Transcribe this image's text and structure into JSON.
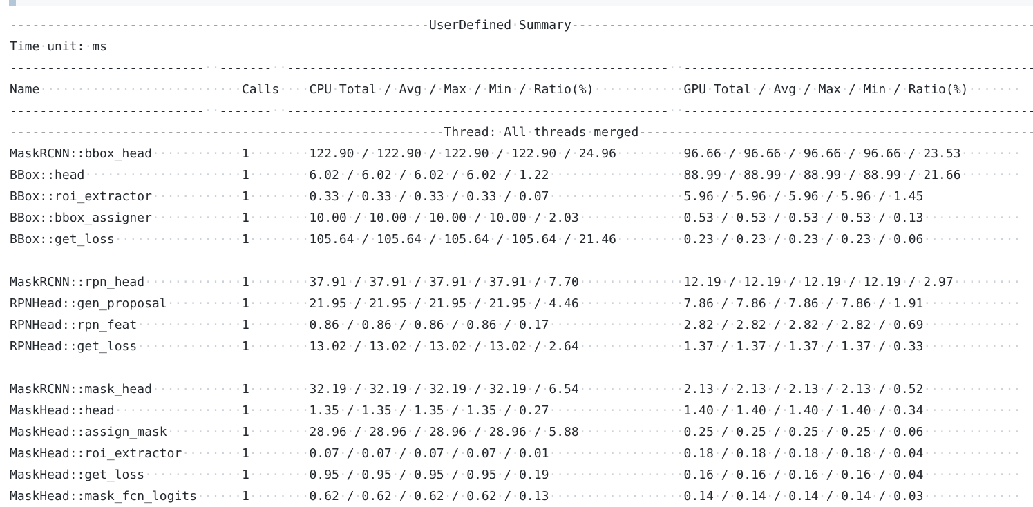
{
  "colors": {
    "text": "#24292f",
    "whitespace_dots": "#ccd2da",
    "line_highlight": "#f6f8fa",
    "cursor_block": "#b4c7d9",
    "background": "#ffffff"
  },
  "summary": {
    "title": "UserDefined Summary",
    "time_unit_label": "Time unit: ms",
    "thread_header": "Thread: All threads merged",
    "columns": {
      "name": "Name",
      "calls": "Calls",
      "cpu": "CPU Total / Avg / Max / Min / Ratio(%)",
      "gpu": "GPU Total / Avg / Max / Min / Ratio(%)"
    },
    "groups": [
      {
        "rows": [
          {
            "name": "MaskRCNN::bbox_head",
            "calls": "1",
            "cpu": "122.90 / 122.90 / 122.90 / 122.90 / 24.96",
            "gpu": "96.66 / 96.66 / 96.66 / 96.66 / 23.53",
            "trailing_whitespace": true
          },
          {
            "name": "BBox::head",
            "calls": "1",
            "cpu": "6.02 / 6.02 / 6.02 / 6.02 / 1.22",
            "gpu": "88.99 / 88.99 / 88.99 / 88.99 / 21.66",
            "trailing_whitespace": true
          },
          {
            "name": "BBox::roi_extractor",
            "calls": "1",
            "cpu": "0.33 / 0.33 / 0.33 / 0.33 / 0.07",
            "gpu": "5.96 / 5.96 / 5.96 / 5.96 / 1.45",
            "trailing_whitespace": false
          },
          {
            "name": "BBox::bbox_assigner",
            "calls": "1",
            "cpu": "10.00 / 10.00 / 10.00 / 10.00 / 2.03",
            "gpu": "0.53 / 0.53 / 0.53 / 0.53 / 0.13",
            "trailing_whitespace": true
          },
          {
            "name": "BBox::get_loss",
            "calls": "1",
            "cpu": "105.64 / 105.64 / 105.64 / 105.64 / 21.46",
            "gpu": "0.23 / 0.23 / 0.23 / 0.23 / 0.06",
            "trailing_whitespace": true
          }
        ]
      },
      {
        "rows": [
          {
            "name": "MaskRCNN::rpn_head",
            "calls": "1",
            "cpu": "37.91 / 37.91 / 37.91 / 37.91 / 7.70",
            "gpu": "12.19 / 12.19 / 12.19 / 12.19 / 2.97",
            "trailing_whitespace": true
          },
          {
            "name": "RPNHead::gen_proposal",
            "calls": "1",
            "cpu": "21.95 / 21.95 / 21.95 / 21.95 / 4.46",
            "gpu": "7.86 / 7.86 / 7.86 / 7.86 / 1.91",
            "trailing_whitespace": true
          },
          {
            "name": "RPNHead::rpn_feat",
            "calls": "1",
            "cpu": "0.86 / 0.86 / 0.86 / 0.86 / 0.17",
            "gpu": "2.82 / 2.82 / 2.82 / 2.82 / 0.69",
            "trailing_whitespace": true
          },
          {
            "name": "RPNHead::get_loss",
            "calls": "1",
            "cpu": "13.02 / 13.02 / 13.02 / 13.02 / 2.64",
            "gpu": "1.37 / 1.37 / 1.37 / 1.37 / 0.33",
            "trailing_whitespace": true
          }
        ]
      },
      {
        "rows": [
          {
            "name": "MaskRCNN::mask_head",
            "calls": "1",
            "cpu": "32.19 / 32.19 / 32.19 / 32.19 / 6.54",
            "gpu": "2.13 / 2.13 / 2.13 / 2.13 / 0.52",
            "trailing_whitespace": true
          },
          {
            "name": "MaskHead::head",
            "calls": "1",
            "cpu": "1.35 / 1.35 / 1.35 / 1.35 / 0.27",
            "gpu": "1.40 / 1.40 / 1.40 / 1.40 / 0.34",
            "trailing_whitespace": true
          },
          {
            "name": "MaskHead::assign_mask",
            "calls": "1",
            "cpu": "28.96 / 28.96 / 28.96 / 28.96 / 5.88",
            "gpu": "0.25 / 0.25 / 0.25 / 0.25 / 0.06",
            "trailing_whitespace": true
          },
          {
            "name": "MaskHead::roi_extractor",
            "calls": "1",
            "cpu": "0.07 / 0.07 / 0.07 / 0.07 / 0.01",
            "gpu": "0.18 / 0.18 / 0.18 / 0.18 / 0.04",
            "trailing_whitespace": true
          },
          {
            "name": "MaskHead::get_loss",
            "calls": "1",
            "cpu": "0.95 / 0.95 / 0.95 / 0.95 / 0.19",
            "gpu": "0.16 / 0.16 / 0.16 / 0.16 / 0.04",
            "trailing_whitespace": true
          },
          {
            "name": "MaskHead::mask_fcn_logits",
            "calls": "1",
            "cpu": "0.62 / 0.62 / 0.62 / 0.62 / 0.13",
            "gpu": "0.14 / 0.14 / 0.14 / 0.14 / 0.03",
            "trailing_whitespace": true
          }
        ]
      }
    ]
  }
}
